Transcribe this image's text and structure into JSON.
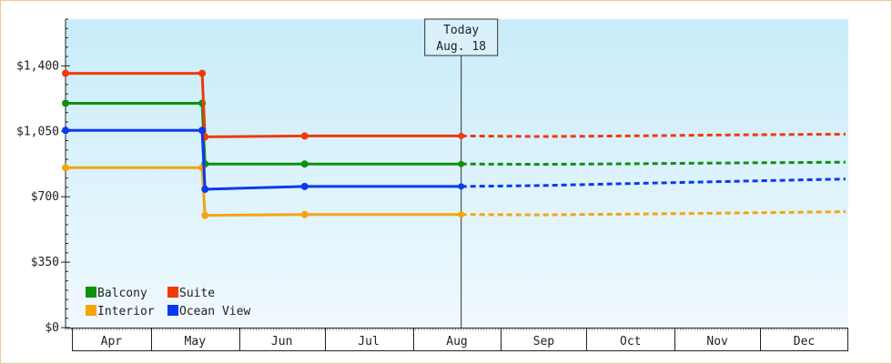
{
  "chart_data": {
    "type": "line",
    "title": "",
    "xlabel": "",
    "ylabel": "",
    "ylim": [
      0,
      1650
    ],
    "yticks": [
      {
        "value": 0,
        "label": "$0"
      },
      {
        "value": 350,
        "label": "$350"
      },
      {
        "value": 700,
        "label": "$700"
      },
      {
        "value": 1050,
        "label": "$1,050"
      },
      {
        "value": 1400,
        "label": "$1,400"
      }
    ],
    "x_domain": [
      "Apr 1",
      "Dec 31"
    ],
    "months": [
      "Apr",
      "May",
      "Jun",
      "Jul",
      "Aug",
      "Sep",
      "Oct",
      "Nov",
      "Dec"
    ],
    "today": {
      "line1": "Today",
      "line2": "Aug. 18",
      "date": "Aug 18"
    },
    "legend": {
      "position": "bottom-left"
    },
    "grid": false,
    "series": [
      {
        "name": "Balcony",
        "color": "#109010",
        "actual": [
          [
            "Apr 1",
            1200
          ],
          [
            "May 19",
            1200
          ],
          [
            "May 20",
            875
          ],
          [
            "Jun 24",
            875
          ],
          [
            "Aug 18",
            875
          ]
        ],
        "forecast": [
          [
            "Aug 18",
            875
          ],
          [
            "Sep 15",
            873
          ],
          [
            "Oct 15",
            876
          ],
          [
            "Nov 15",
            880
          ],
          [
            "Dec 31",
            885
          ]
        ]
      },
      {
        "name": "Suite",
        "color": "#f03a08",
        "actual": [
          [
            "Apr 1",
            1360
          ],
          [
            "May 19",
            1360
          ],
          [
            "May 20",
            1020
          ],
          [
            "Jun 24",
            1025
          ],
          [
            "Aug 18",
            1025
          ]
        ],
        "forecast": [
          [
            "Aug 18",
            1025
          ],
          [
            "Sep 15",
            1022
          ],
          [
            "Oct 15",
            1025
          ],
          [
            "Nov 15",
            1030
          ],
          [
            "Dec 31",
            1035
          ]
        ]
      },
      {
        "name": "Interior",
        "color": "#f5a410",
        "actual": [
          [
            "Apr 1",
            855
          ],
          [
            "May 19",
            855
          ],
          [
            "May 20",
            600
          ],
          [
            "Jun 24",
            605
          ],
          [
            "Aug 18",
            605
          ]
        ],
        "forecast": [
          [
            "Aug 18",
            605
          ],
          [
            "Sep 15",
            603
          ],
          [
            "Oct 15",
            607
          ],
          [
            "Nov 15",
            612
          ],
          [
            "Dec 31",
            620
          ]
        ]
      },
      {
        "name": "Ocean View",
        "color": "#0a3af0",
        "actual": [
          [
            "Apr 1",
            1055
          ],
          [
            "May 19",
            1055
          ],
          [
            "May 20",
            740
          ],
          [
            "Jun 24",
            755
          ],
          [
            "Aug 18",
            755
          ]
        ],
        "forecast": [
          [
            "Aug 18",
            755
          ],
          [
            "Sep 15",
            760
          ],
          [
            "Oct 15",
            770
          ],
          [
            "Nov 15",
            780
          ],
          [
            "Dec 31",
            795
          ]
        ]
      }
    ]
  }
}
